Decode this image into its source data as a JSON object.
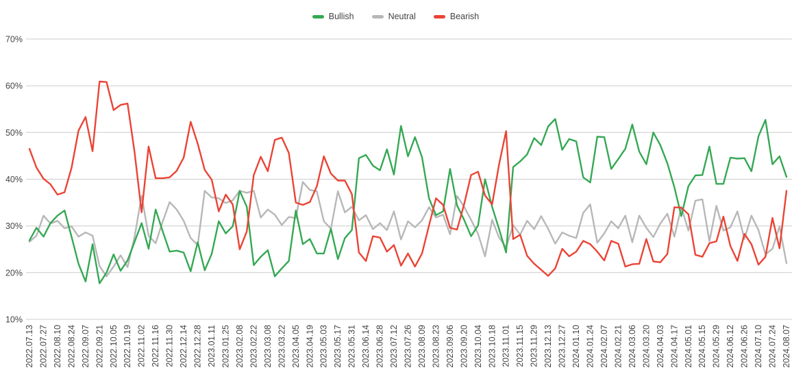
{
  "colors": {
    "background": "#ffffff",
    "grid": "#cccccc",
    "tick_text": "#444444",
    "legend_text": "#424242",
    "bullish": "#34a853",
    "neutral": "#b7b7b7",
    "bearish": "#ea4335"
  },
  "axes": {
    "y_ticks": [
      "70%",
      "60%",
      "50%",
      "40%",
      "30%",
      "20%",
      "10%"
    ]
  },
  "chart_data": {
    "type": "line",
    "grid": true,
    "legend_position": "top-center",
    "ylim": [
      10,
      70
    ],
    "y_tick_step": 10,
    "y_tick_suffix": "%",
    "x_label_every": 2,
    "x_label_rotation": -90,
    "x": [
      "2022.07.13",
      "2022.07.20",
      "2022.07.27",
      "2022.08.03",
      "2022.08.10",
      "2022.08.17",
      "2022.08.24",
      "2022.08.31",
      "2022.09.07",
      "2022.09.14",
      "2022.09.21",
      "2022.09.28",
      "2022.10.05",
      "2022.10.12",
      "2022.10.19",
      "2022.10.26",
      "2022.11.02",
      "2022.11.09",
      "2022.11.16",
      "2022.11.23",
      "2022.11.30",
      "2022.12.07",
      "2022.12.14",
      "2022.12.21",
      "2022.12.28",
      "2023.01.04",
      "2023.01.11",
      "2023.01.18",
      "2023.01.25",
      "2023.02.01",
      "2023.02.08",
      "2023.02.15",
      "2023.02.22",
      "2023.03.01",
      "2023.03.08",
      "2023.03.15",
      "2023.03.22",
      "2023.03.29",
      "2023.04.05",
      "2023.04.12",
      "2023.04.19",
      "2023.04.26",
      "2023.05.03",
      "2023.05.10",
      "2023.05.17",
      "2023.05.24",
      "2023.05.31",
      "2023.06.07",
      "2023.06.14",
      "2023.06.21",
      "2023.06.28",
      "2023.07.05",
      "2023.07.12",
      "2023.07.19",
      "2023.07.26",
      "2023.08.02",
      "2023.08.09",
      "2023.08.16",
      "2023.08.23",
      "2023.08.30",
      "2023.09.06",
      "2023.09.13",
      "2023.09.20",
      "2023.09.27",
      "2023.10.04",
      "2023.10.11",
      "2023.10.18",
      "2023.10.25",
      "2023.11.01",
      "2023.11.08",
      "2023.11.15",
      "2023.11.22",
      "2023.11.29",
      "2023.12.06",
      "2023.12.13",
      "2023.12.20",
      "2023.12.27",
      "2024.01.03",
      "2024.01.10",
      "2024.01.17",
      "2024.01.24",
      "2024.01.31",
      "2024.02.07",
      "2024.02.14",
      "2024.02.21",
      "2024.02.28",
      "2024.03.06",
      "2024.03.13",
      "2024.03.20",
      "2024.03.27",
      "2024.04.03",
      "2024.04.10",
      "2024.04.17",
      "2024.04.24",
      "2024.05.01",
      "2024.05.08",
      "2024.05.15",
      "2024.05.22",
      "2024.05.29",
      "2024.06.05",
      "2024.06.12",
      "2024.06.19",
      "2024.06.26",
      "2024.07.03",
      "2024.07.10",
      "2024.07.17",
      "2024.07.24",
      "2024.07.31",
      "2024.08.07"
    ],
    "series": [
      {
        "name": "Bullish",
        "color": "#34a853",
        "values": [
          26.9,
          29.6,
          27.7,
          30.6,
          32.2,
          33.3,
          27.7,
          21.9,
          18.1,
          26.1,
          17.7,
          20.0,
          23.9,
          20.4,
          22.6,
          26.6,
          30.6,
          25.1,
          33.5,
          28.9,
          24.5,
          24.7,
          24.3,
          20.3,
          26.5,
          20.5,
          24.0,
          31.0,
          28.4,
          29.9,
          37.5,
          34.1,
          21.6,
          23.4,
          24.8,
          19.2,
          20.9,
          22.5,
          33.3,
          26.1,
          27.2,
          24.1,
          24.1,
          29.4,
          22.9,
          27.4,
          29.1,
          44.5,
          45.2,
          42.9,
          41.9,
          46.4,
          41.0,
          51.4,
          44.9,
          49.0,
          44.7,
          35.9,
          32.3,
          33.1,
          42.2,
          34.4,
          31.3,
          27.8,
          30.1,
          40.0,
          34.1,
          29.3,
          24.3,
          42.6,
          43.8,
          45.3,
          48.8,
          47.3,
          51.3,
          52.9,
          46.3,
          48.6,
          48.1,
          40.4,
          39.3,
          49.1,
          49.0,
          42.2,
          44.3,
          46.5,
          51.7,
          45.9,
          43.2,
          50.0,
          47.3,
          43.4,
          38.3,
          32.1,
          38.5,
          40.8,
          40.9,
          47.0,
          39.0,
          39.0,
          44.6,
          44.4,
          44.5,
          41.7,
          49.2,
          52.7,
          43.2,
          44.9,
          40.5
        ]
      },
      {
        "name": "Neutral",
        "color": "#b7b7b7",
        "values": [
          26.6,
          27.9,
          32.2,
          30.5,
          31.1,
          29.5,
          29.9,
          27.7,
          28.6,
          27.9,
          21.4,
          19.2,
          21.3,
          23.7,
          21.2,
          27.7,
          36.5,
          27.9,
          26.3,
          30.9,
          35.1,
          33.5,
          31.1,
          27.4,
          25.9,
          37.5,
          36.1,
          35.9,
          34.9,
          35.5,
          37.5,
          37.1,
          37.5,
          31.8,
          33.5,
          32.4,
          30.2,
          31.9,
          31.7,
          39.4,
          37.7,
          37.4,
          31.0,
          29.4,
          37.4,
          32.9,
          34.1,
          31.2,
          32.3,
          29.3,
          30.6,
          29.1,
          33.1,
          27.1,
          31.0,
          29.7,
          31.2,
          34.0,
          31.8,
          32.4,
          28.2,
          36.4,
          34.1,
          31.3,
          28.3,
          23.5,
          31.3,
          27.5,
          25.4,
          30.2,
          28.1,
          31.1,
          29.3,
          32.1,
          29.4,
          26.2,
          28.6,
          27.9,
          27.4,
          32.8,
          34.6,
          26.4,
          28.4,
          31.0,
          29.5,
          32.2,
          26.5,
          32.2,
          29.6,
          27.6,
          30.5,
          32.6,
          27.7,
          34.0,
          29.0,
          35.4,
          35.7,
          26.7,
          34.3,
          29.0,
          29.7,
          33.1,
          27.2,
          32.2,
          29.1,
          23.9,
          25.1,
          29.9,
          22.0
        ]
      },
      {
        "name": "Bearish",
        "color": "#ea4335",
        "values": [
          46.5,
          42.5,
          40.1,
          38.9,
          36.7,
          37.2,
          42.4,
          50.4,
          53.3,
          46.0,
          60.9,
          60.8,
          54.8,
          55.9,
          56.2,
          45.7,
          32.9,
          47.0,
          40.2,
          40.2,
          40.4,
          41.8,
          44.6,
          52.3,
          47.6,
          42.0,
          39.9,
          33.1,
          36.7,
          34.6,
          25.0,
          28.8,
          40.9,
          44.8,
          41.7,
          48.4,
          48.9,
          45.6,
          35.0,
          34.5,
          35.1,
          38.5,
          44.9,
          41.2,
          39.7,
          39.7,
          36.8,
          24.3,
          22.5,
          27.8,
          27.5,
          24.5,
          25.9,
          21.5,
          24.1,
          21.3,
          24.1,
          30.1,
          35.9,
          34.5,
          29.6,
          29.2,
          34.6,
          40.9,
          41.6,
          36.5,
          34.6,
          43.2,
          50.3,
          27.2,
          28.1,
          23.6,
          21.9,
          20.6,
          19.3,
          20.9,
          25.1,
          23.5,
          24.5,
          26.8,
          26.1,
          24.5,
          22.6,
          26.8,
          26.2,
          21.3,
          21.8,
          21.9,
          27.2,
          22.4,
          22.2,
          24.0,
          34.0,
          33.9,
          32.5,
          23.8,
          23.4,
          26.3,
          26.7,
          32.0,
          25.7,
          22.5,
          28.3,
          26.1,
          21.7,
          23.4,
          31.7,
          25.2,
          37.5
        ]
      }
    ]
  }
}
